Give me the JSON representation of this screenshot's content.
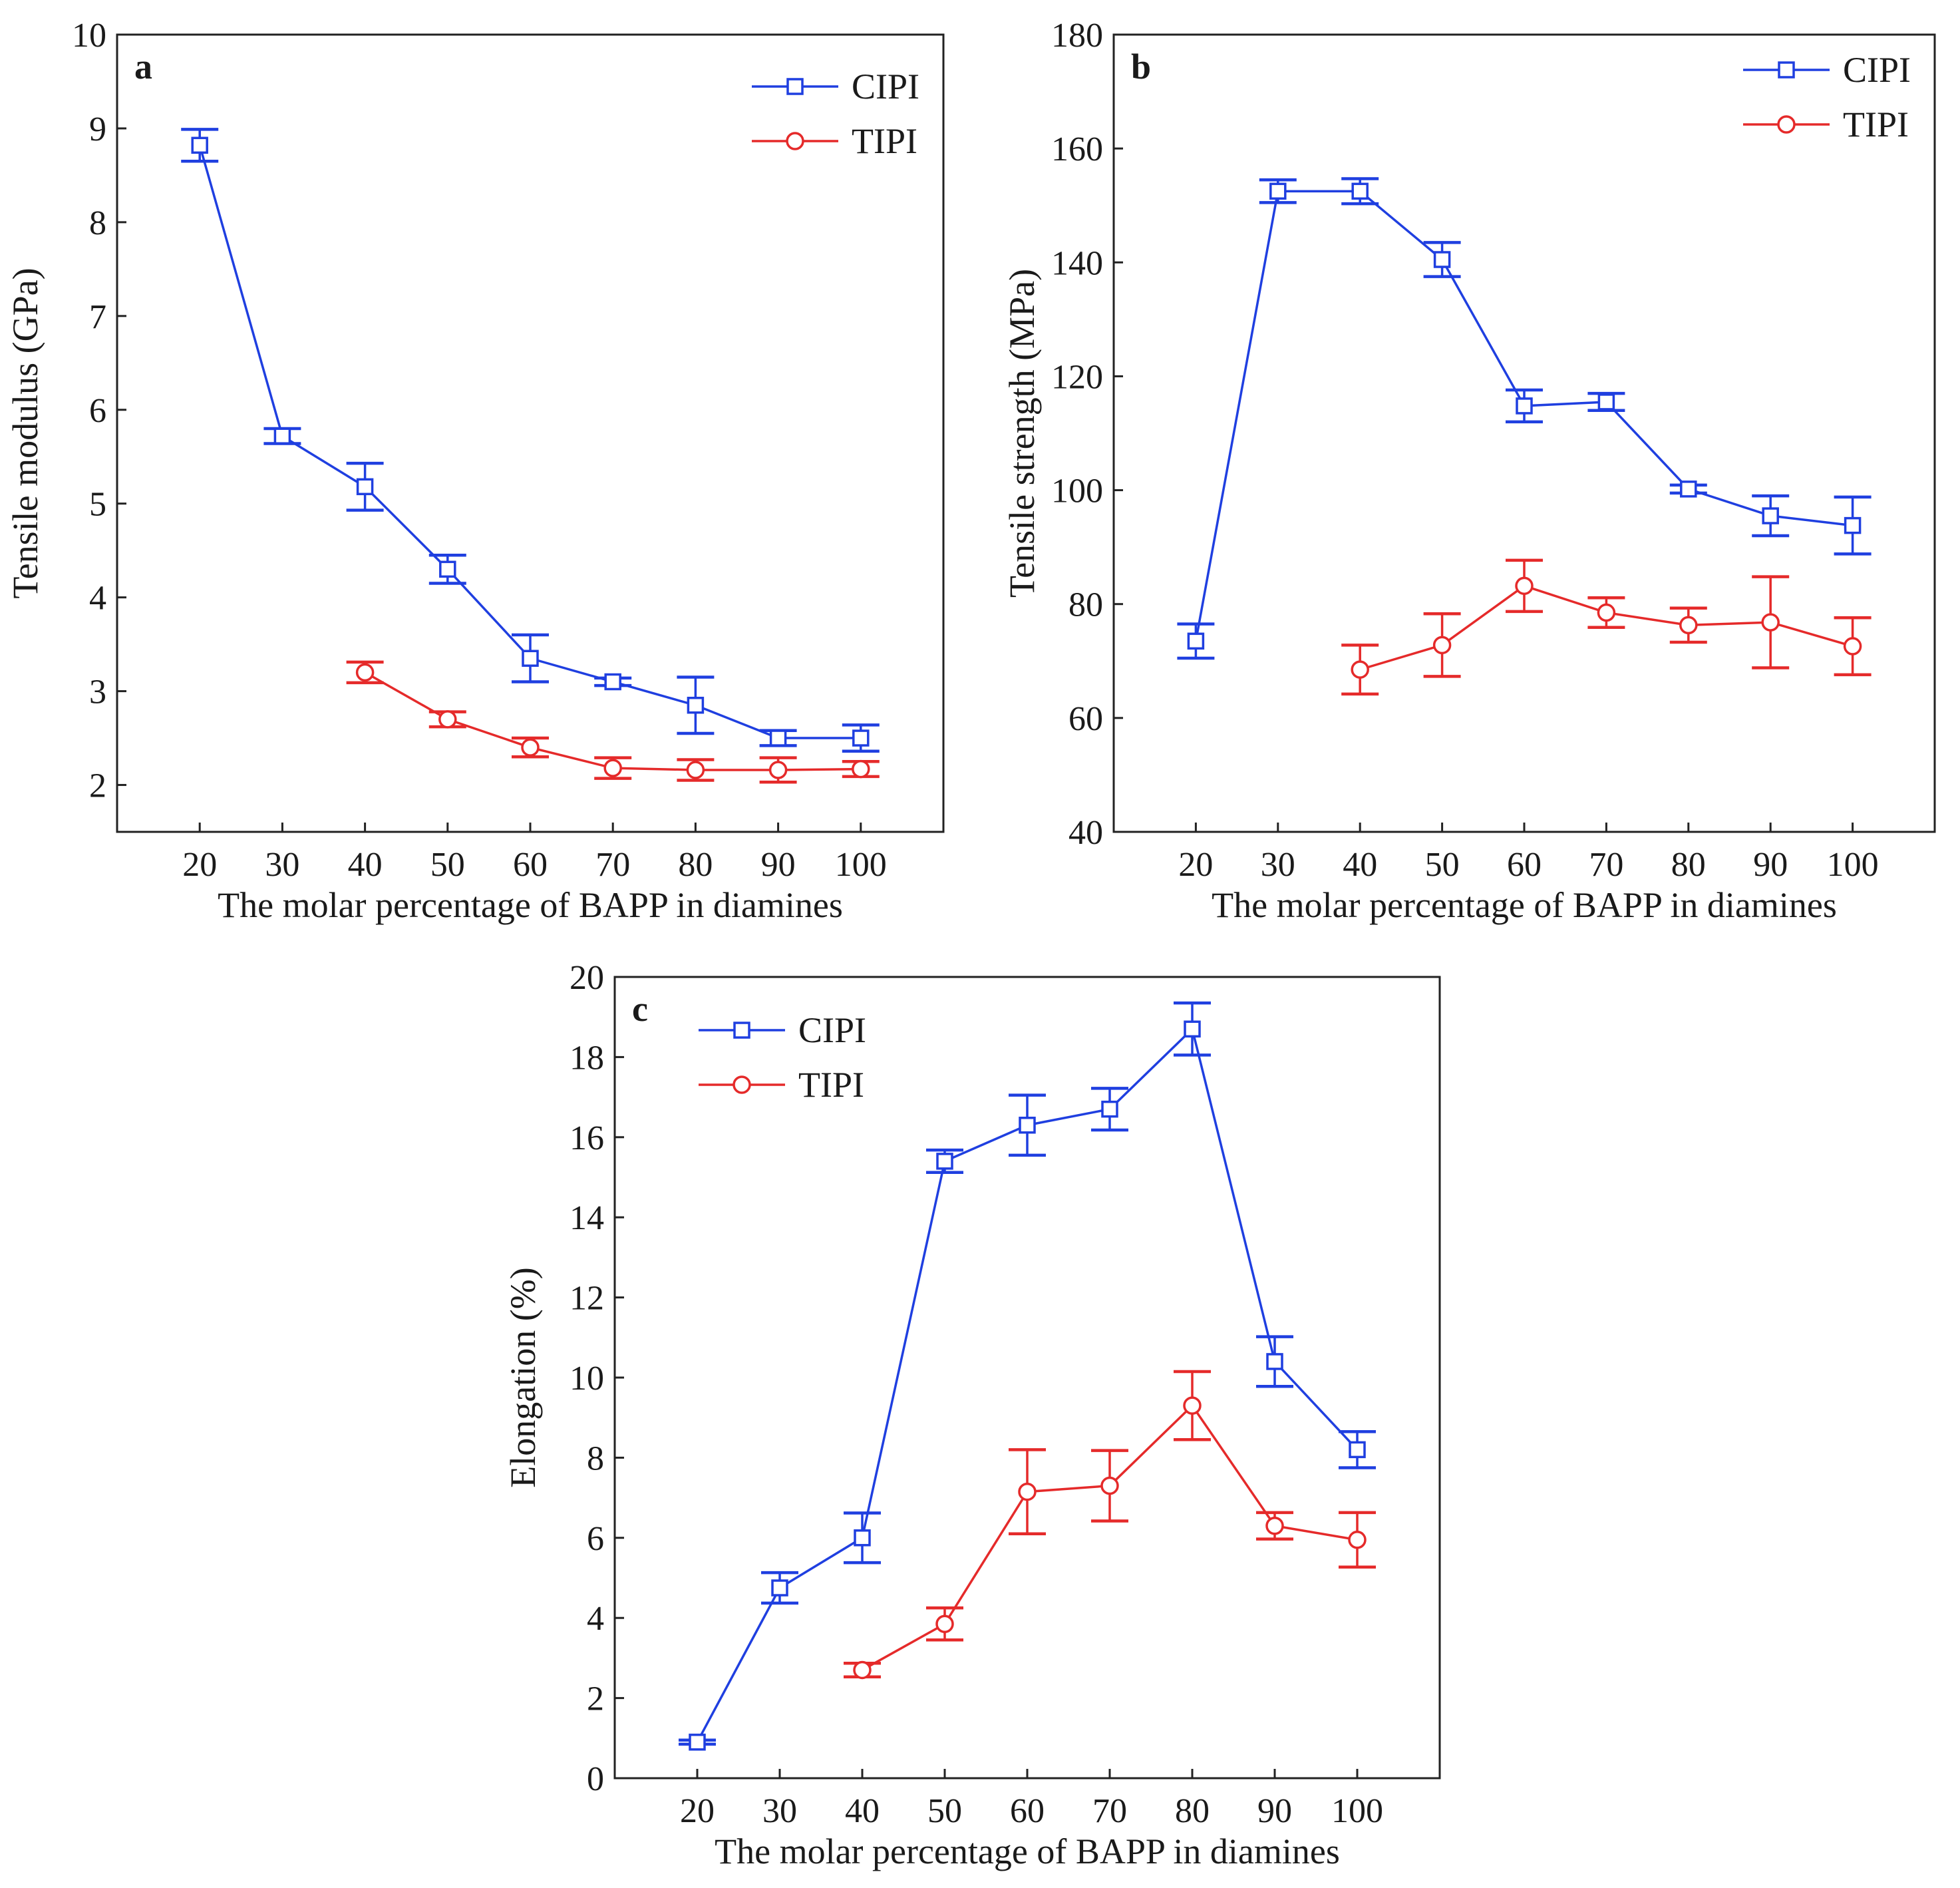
{
  "chart_data": [
    {
      "type": "line",
      "panel_label": "a",
      "xlabel": "The molar percentage of BAPP in diamines",
      "ylabel": "Tensile modulus (GPa)",
      "x": [
        20,
        30,
        40,
        50,
        60,
        70,
        80,
        90,
        100
      ],
      "xlim": [
        10,
        110
      ],
      "ylim": [
        1.5,
        10
      ],
      "yticks": [
        2,
        3,
        4,
        5,
        6,
        7,
        8,
        9,
        10
      ],
      "legend_position": "top-right",
      "series": [
        {
          "name": "CIPI",
          "color": "#1f3fe0",
          "marker": "square",
          "x": [
            20,
            30,
            40,
            50,
            60,
            70,
            80,
            90,
            100
          ],
          "y": [
            8.82,
            5.72,
            5.18,
            4.3,
            3.35,
            3.1,
            2.85,
            2.5,
            2.5
          ],
          "err": [
            0.17,
            0.08,
            0.25,
            0.15,
            0.25,
            0.04,
            0.3,
            0.08,
            0.14
          ]
        },
        {
          "name": "TIPI",
          "color": "#e52a2a",
          "marker": "circle",
          "x": [
            40,
            50,
            60,
            70,
            80,
            90,
            100
          ],
          "y": [
            3.2,
            2.7,
            2.4,
            2.18,
            2.16,
            2.16,
            2.17
          ],
          "err": [
            0.11,
            0.08,
            0.1,
            0.11,
            0.11,
            0.13,
            0.08
          ]
        }
      ]
    },
    {
      "type": "line",
      "panel_label": "b",
      "xlabel": "The molar percentage of BAPP in diamines",
      "ylabel": "Tensile strength (MPa)",
      "x": [
        20,
        30,
        40,
        50,
        60,
        70,
        80,
        90,
        100
      ],
      "xlim": [
        10,
        110
      ],
      "ylim": [
        40,
        180
      ],
      "yticks": [
        40,
        60,
        80,
        100,
        120,
        140,
        160,
        180
      ],
      "legend_position": "top-right",
      "series": [
        {
          "name": "CIPI",
          "color": "#1f3fe0",
          "marker": "square",
          "x": [
            20,
            30,
            40,
            50,
            60,
            70,
            80,
            90,
            100
          ],
          "y": [
            73.5,
            152.5,
            152.5,
            140.5,
            114.8,
            115.5,
            100.2,
            95.5,
            93.8
          ],
          "err": [
            3.0,
            2.0,
            2.2,
            3.0,
            2.8,
            1.5,
            0.7,
            3.5,
            5.0
          ]
        },
        {
          "name": "TIPI",
          "color": "#e52a2a",
          "marker": "circle",
          "x": [
            40,
            50,
            60,
            70,
            80,
            90,
            100
          ],
          "y": [
            68.5,
            72.8,
            83.2,
            78.5,
            76.3,
            76.8,
            72.6
          ],
          "err": [
            4.3,
            5.5,
            4.5,
            2.6,
            3.0,
            8.0,
            5.0
          ]
        }
      ]
    },
    {
      "type": "line",
      "panel_label": "c",
      "xlabel": "The molar percentage of BAPP in diamines",
      "ylabel": "Elongation (%)",
      "x": [
        20,
        30,
        40,
        50,
        60,
        70,
        80,
        90,
        100
      ],
      "xlim": [
        10,
        110
      ],
      "ylim": [
        0,
        20
      ],
      "yticks": [
        0,
        2,
        4,
        6,
        8,
        10,
        12,
        14,
        16,
        18,
        20
      ],
      "legend_position": "top-left",
      "series": [
        {
          "name": "CIPI",
          "color": "#1f3fe0",
          "marker": "square",
          "x": [
            20,
            30,
            40,
            50,
            60,
            70,
            80,
            90,
            100
          ],
          "y": [
            0.9,
            4.75,
            6.0,
            15.4,
            16.3,
            16.7,
            18.7,
            10.4,
            8.2
          ],
          "err": [
            0.05,
            0.38,
            0.62,
            0.28,
            0.75,
            0.52,
            0.65,
            0.62,
            0.45
          ]
        },
        {
          "name": "TIPI",
          "color": "#e52a2a",
          "marker": "circle",
          "x": [
            40,
            50,
            60,
            70,
            80,
            90,
            100
          ],
          "y": [
            2.7,
            3.85,
            7.15,
            7.3,
            9.3,
            6.3,
            5.95
          ],
          "err": [
            0.17,
            0.4,
            1.05,
            0.88,
            0.85,
            0.33,
            0.68
          ]
        }
      ]
    }
  ]
}
